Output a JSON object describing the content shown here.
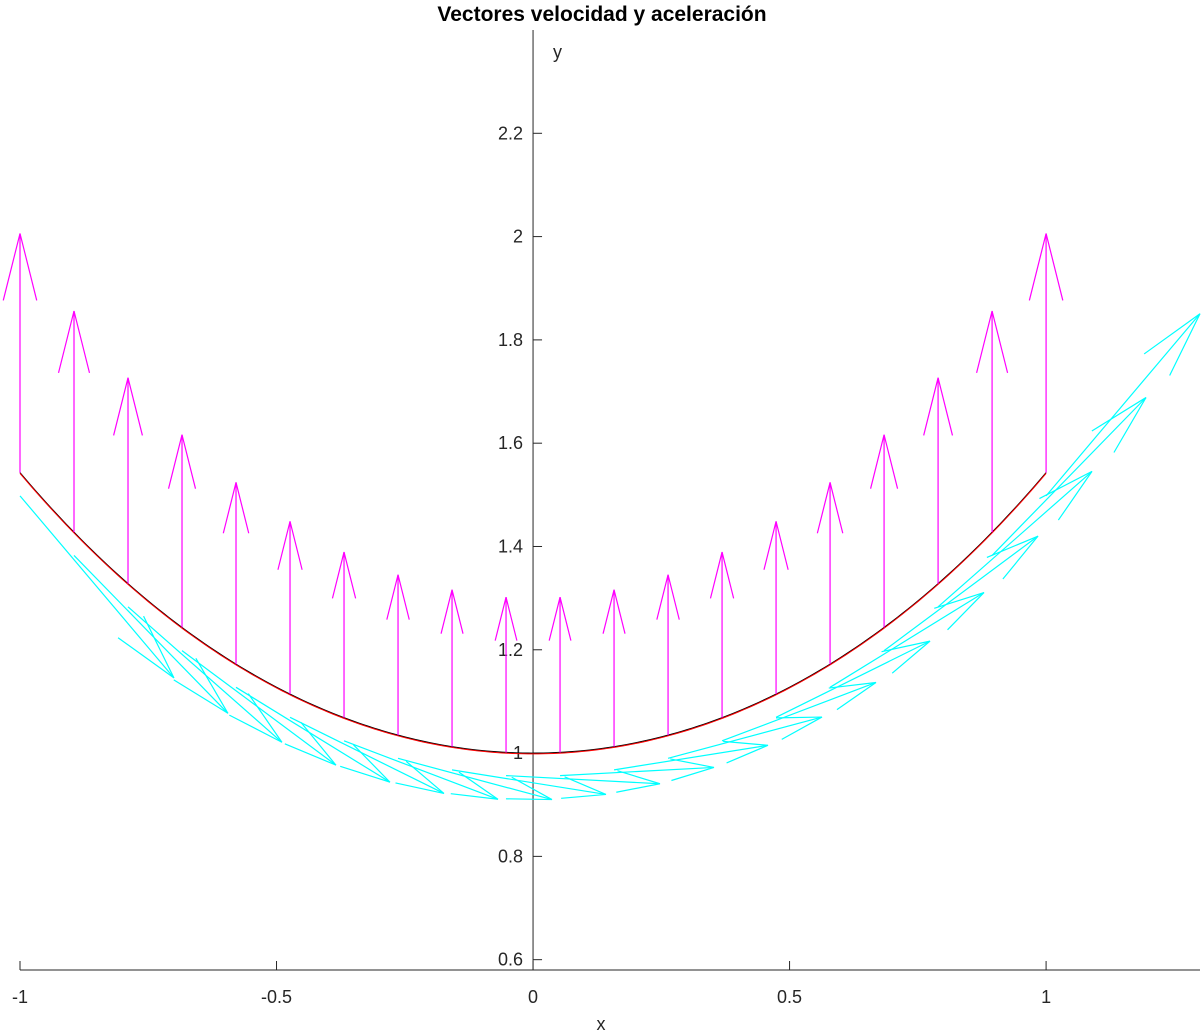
{
  "chart_data": {
    "type": "line",
    "title": "Vectores velocidad y aceleración",
    "xlabel": "x",
    "ylabel": "y",
    "xlim": [
      -1.0,
      1.3
    ],
    "ylim": [
      0.58,
      2.4
    ],
    "x_ticks": [
      -1,
      -0.5,
      0,
      0.5,
      1
    ],
    "x_tick_labels": [
      "-1",
      "-0.5",
      "0",
      "0.5",
      "1"
    ],
    "y_ticks": [
      0.6,
      0.8,
      1,
      1.2,
      1.4,
      1.6,
      1.8,
      2,
      2.2
    ],
    "y_tick_labels": [
      "0.6",
      "0.8",
      "1",
      "1.2",
      "1.4",
      "1.6",
      "1.8",
      "2",
      "2.2"
    ],
    "grid": false,
    "axis_location": "origin",
    "curve": {
      "function": "cosh(x)",
      "x_range": [
        -1,
        1
      ],
      "colors": [
        "#000000",
        "#ff0000"
      ]
    },
    "sample_points": {
      "t_start": -1,
      "t_end": 1,
      "count": 20
    },
    "series": [
      {
        "kind": "acceleration_vectors",
        "color": "#ff00ff",
        "vector": "(0, cosh(t)) * 0.3"
      },
      {
        "kind": "velocity_vectors",
        "color": "#00ffff",
        "vector": "(1, sinh(t)) * 0.3"
      }
    ]
  }
}
